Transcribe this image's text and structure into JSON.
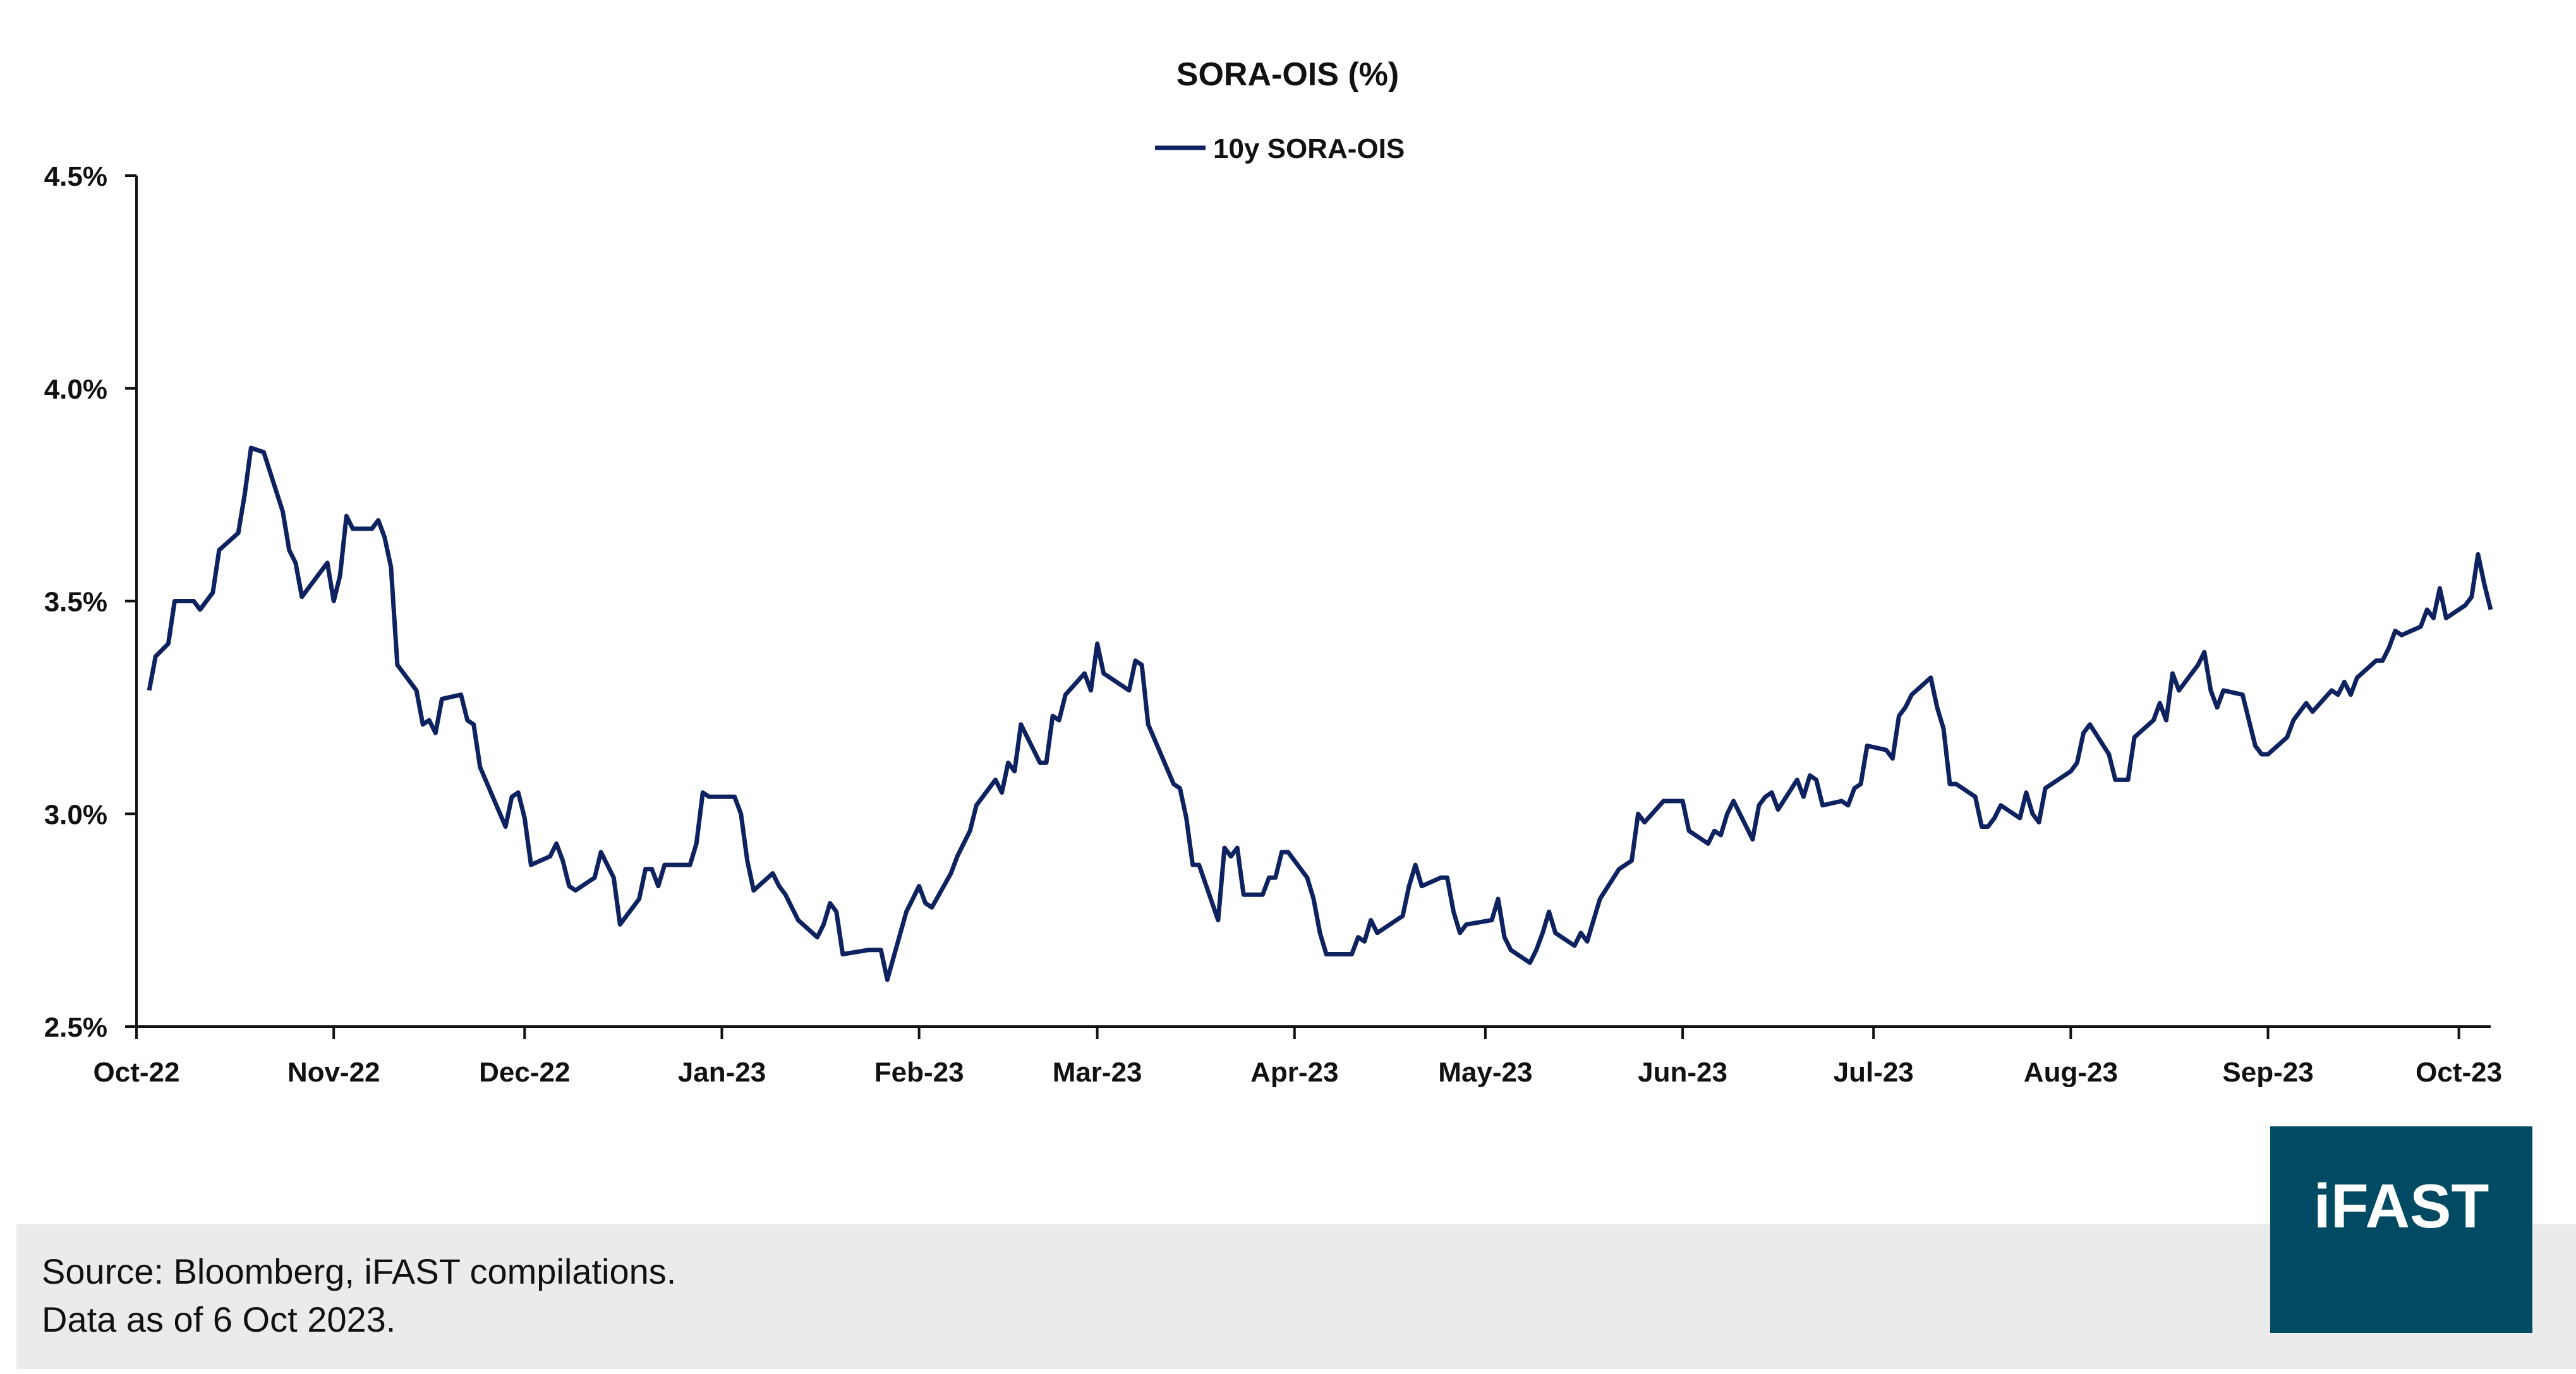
{
  "chart_data": {
    "type": "line",
    "title": "SORA-OIS (%)",
    "xlabel": "",
    "ylabel": "",
    "ylim": [
      2.5,
      4.5
    ],
    "y_ticks": [
      "2.5%",
      "3.0%",
      "3.5%",
      "4.0%",
      "4.5%"
    ],
    "y_tick_values": [
      2.5,
      3.0,
      3.5,
      4.0,
      4.5
    ],
    "x_ticks": [
      {
        "label": "Oct-22",
        "date": "2022-10-01"
      },
      {
        "label": "Nov-22",
        "date": "2022-11-01"
      },
      {
        "label": "Dec-22",
        "date": "2022-12-01"
      },
      {
        "label": "Jan-23",
        "date": "2023-01-01"
      },
      {
        "label": "Feb-23",
        "date": "2023-02-01"
      },
      {
        "label": "Mar-23",
        "date": "2023-03-01"
      },
      {
        "label": "Apr-23",
        "date": "2023-04-01"
      },
      {
        "label": "May-23",
        "date": "2023-05-01"
      },
      {
        "label": "Jun-23",
        "date": "2023-06-01"
      },
      {
        "label": "Jul-23",
        "date": "2023-07-01"
      },
      {
        "label": "Aug-23",
        "date": "2023-08-01"
      },
      {
        "label": "Sep-23",
        "date": "2023-09-01"
      },
      {
        "label": "Oct-23",
        "date": "2023-10-01"
      }
    ],
    "xlim": [
      "2022-10-01",
      "2023-10-06"
    ],
    "grid": false,
    "legend_position": "top-center",
    "series": [
      {
        "name": "10y SORA-OIS",
        "color": "#0f2260",
        "points": [
          [
            "2022-10-03",
            3.29
          ],
          [
            "2022-10-04",
            3.37
          ],
          [
            "2022-10-06",
            3.4
          ],
          [
            "2022-10-07",
            3.5
          ],
          [
            "2022-10-10",
            3.5
          ],
          [
            "2022-10-11",
            3.48
          ],
          [
            "2022-10-13",
            3.52
          ],
          [
            "2022-10-14",
            3.62
          ],
          [
            "2022-10-17",
            3.66
          ],
          [
            "2022-10-18",
            3.75
          ],
          [
            "2022-10-19",
            3.86
          ],
          [
            "2022-10-21",
            3.85
          ],
          [
            "2022-10-24",
            3.71
          ],
          [
            "2022-10-25",
            3.62
          ],
          [
            "2022-10-26",
            3.59
          ],
          [
            "2022-10-27",
            3.51
          ],
          [
            "2022-10-31",
            3.59
          ],
          [
            "2022-11-01",
            3.5
          ],
          [
            "2022-11-02",
            3.56
          ],
          [
            "2022-11-03",
            3.7
          ],
          [
            "2022-11-04",
            3.67
          ],
          [
            "2022-11-07",
            3.67
          ],
          [
            "2022-11-08",
            3.69
          ],
          [
            "2022-11-09",
            3.65
          ],
          [
            "2022-11-10",
            3.58
          ],
          [
            "2022-11-11",
            3.35
          ],
          [
            "2022-11-14",
            3.29
          ],
          [
            "2022-11-15",
            3.21
          ],
          [
            "2022-11-16",
            3.22
          ],
          [
            "2022-11-17",
            3.19
          ],
          [
            "2022-11-18",
            3.27
          ],
          [
            "2022-11-21",
            3.28
          ],
          [
            "2022-11-22",
            3.22
          ],
          [
            "2022-11-23",
            3.21
          ],
          [
            "2022-11-24",
            3.11
          ],
          [
            "2022-11-28",
            2.97
          ],
          [
            "2022-11-29",
            3.04
          ],
          [
            "2022-11-30",
            3.05
          ],
          [
            "2022-12-01",
            2.99
          ],
          [
            "2022-12-02",
            2.88
          ],
          [
            "2022-12-05",
            2.9
          ],
          [
            "2022-12-06",
            2.93
          ],
          [
            "2022-12-07",
            2.89
          ],
          [
            "2022-12-08",
            2.83
          ],
          [
            "2022-12-09",
            2.82
          ],
          [
            "2022-12-12",
            2.85
          ],
          [
            "2022-12-13",
            2.91
          ],
          [
            "2022-12-14",
            2.88
          ],
          [
            "2022-12-15",
            2.85
          ],
          [
            "2022-12-16",
            2.74
          ],
          [
            "2022-12-19",
            2.8
          ],
          [
            "2022-12-20",
            2.87
          ],
          [
            "2022-12-21",
            2.87
          ],
          [
            "2022-12-22",
            2.83
          ],
          [
            "2022-12-23",
            2.88
          ],
          [
            "2022-12-27",
            2.88
          ],
          [
            "2022-12-28",
            2.93
          ],
          [
            "2022-12-29",
            3.05
          ],
          [
            "2022-12-30",
            3.04
          ],
          [
            "2023-01-03",
            3.04
          ],
          [
            "2023-01-04",
            3.0
          ],
          [
            "2023-01-05",
            2.89
          ],
          [
            "2023-01-06",
            2.82
          ],
          [
            "2023-01-09",
            2.86
          ],
          [
            "2023-01-10",
            2.83
          ],
          [
            "2023-01-11",
            2.81
          ],
          [
            "2023-01-12",
            2.78
          ],
          [
            "2023-01-13",
            2.75
          ],
          [
            "2023-01-16",
            2.71
          ],
          [
            "2023-01-17",
            2.74
          ],
          [
            "2023-01-18",
            2.79
          ],
          [
            "2023-01-19",
            2.77
          ],
          [
            "2023-01-20",
            2.67
          ],
          [
            "2023-01-24",
            2.68
          ],
          [
            "2023-01-25",
            2.68
          ],
          [
            "2023-01-26",
            2.68
          ],
          [
            "2023-01-27",
            2.61
          ],
          [
            "2023-01-30",
            2.77
          ],
          [
            "2023-01-31",
            2.8
          ],
          [
            "2023-02-01",
            2.83
          ],
          [
            "2023-02-02",
            2.79
          ],
          [
            "2023-02-03",
            2.78
          ],
          [
            "2023-02-06",
            2.86
          ],
          [
            "2023-02-07",
            2.9
          ],
          [
            "2023-02-08",
            2.93
          ],
          [
            "2023-02-09",
            2.96
          ],
          [
            "2023-02-10",
            3.02
          ],
          [
            "2023-02-13",
            3.08
          ],
          [
            "2023-02-14",
            3.05
          ],
          [
            "2023-02-15",
            3.12
          ],
          [
            "2023-02-16",
            3.1
          ],
          [
            "2023-02-17",
            3.21
          ],
          [
            "2023-02-20",
            3.12
          ],
          [
            "2023-02-21",
            3.12
          ],
          [
            "2023-02-22",
            3.23
          ],
          [
            "2023-02-23",
            3.22
          ],
          [
            "2023-02-24",
            3.28
          ],
          [
            "2023-02-27",
            3.33
          ],
          [
            "2023-02-28",
            3.29
          ],
          [
            "2023-03-01",
            3.4
          ],
          [
            "2023-03-02",
            3.33
          ],
          [
            "2023-03-03",
            3.32
          ],
          [
            "2023-03-06",
            3.29
          ],
          [
            "2023-03-07",
            3.36
          ],
          [
            "2023-03-08",
            3.35
          ],
          [
            "2023-03-09",
            3.21
          ],
          [
            "2023-03-13",
            3.07
          ],
          [
            "2023-03-14",
            3.06
          ],
          [
            "2023-03-15",
            2.99
          ],
          [
            "2023-03-16",
            2.88
          ],
          [
            "2023-03-17",
            2.88
          ],
          [
            "2023-03-20",
            2.75
          ],
          [
            "2023-03-21",
            2.92
          ],
          [
            "2023-03-22",
            2.9
          ],
          [
            "2023-03-23",
            2.92
          ],
          [
            "2023-03-24",
            2.81
          ],
          [
            "2023-03-27",
            2.81
          ],
          [
            "2023-03-28",
            2.85
          ],
          [
            "2023-03-29",
            2.85
          ],
          [
            "2023-03-30",
            2.91
          ],
          [
            "2023-03-31",
            2.91
          ],
          [
            "2023-04-03",
            2.85
          ],
          [
            "2023-04-04",
            2.8
          ],
          [
            "2023-04-05",
            2.72
          ],
          [
            "2023-04-06",
            2.67
          ],
          [
            "2023-04-10",
            2.67
          ],
          [
            "2023-04-11",
            2.71
          ],
          [
            "2023-04-12",
            2.7
          ],
          [
            "2023-04-13",
            2.75
          ],
          [
            "2023-04-14",
            2.72
          ],
          [
            "2023-04-17",
            2.75
          ],
          [
            "2023-04-18",
            2.76
          ],
          [
            "2023-04-19",
            2.83
          ],
          [
            "2023-04-20",
            2.88
          ],
          [
            "2023-04-21",
            2.83
          ],
          [
            "2023-04-24",
            2.85
          ],
          [
            "2023-04-25",
            2.85
          ],
          [
            "2023-04-26",
            2.77
          ],
          [
            "2023-04-27",
            2.72
          ],
          [
            "2023-04-28",
            2.74
          ],
          [
            "2023-05-02",
            2.75
          ],
          [
            "2023-05-03",
            2.8
          ],
          [
            "2023-05-04",
            2.71
          ],
          [
            "2023-05-05",
            2.68
          ],
          [
            "2023-05-08",
            2.65
          ],
          [
            "2023-05-09",
            2.68
          ],
          [
            "2023-05-10",
            2.72
          ],
          [
            "2023-05-11",
            2.77
          ],
          [
            "2023-05-12",
            2.72
          ],
          [
            "2023-05-15",
            2.69
          ],
          [
            "2023-05-16",
            2.72
          ],
          [
            "2023-05-17",
            2.7
          ],
          [
            "2023-05-18",
            2.75
          ],
          [
            "2023-05-19",
            2.8
          ],
          [
            "2023-05-22",
            2.87
          ],
          [
            "2023-05-23",
            2.88
          ],
          [
            "2023-05-24",
            2.89
          ],
          [
            "2023-05-25",
            3.0
          ],
          [
            "2023-05-26",
            2.98
          ],
          [
            "2023-05-29",
            3.03
          ],
          [
            "2023-05-31",
            3.03
          ],
          [
            "2023-06-01",
            3.03
          ],
          [
            "2023-06-02",
            2.96
          ],
          [
            "2023-06-05",
            2.93
          ],
          [
            "2023-06-06",
            2.96
          ],
          [
            "2023-06-07",
            2.95
          ],
          [
            "2023-06-08",
            3.0
          ],
          [
            "2023-06-09",
            3.03
          ],
          [
            "2023-06-12",
            2.94
          ],
          [
            "2023-06-13",
            3.02
          ],
          [
            "2023-06-14",
            3.04
          ],
          [
            "2023-06-15",
            3.05
          ],
          [
            "2023-06-16",
            3.01
          ],
          [
            "2023-06-19",
            3.08
          ],
          [
            "2023-06-20",
            3.04
          ],
          [
            "2023-06-21",
            3.09
          ],
          [
            "2023-06-22",
            3.08
          ],
          [
            "2023-06-23",
            3.02
          ],
          [
            "2023-06-26",
            3.03
          ],
          [
            "2023-06-27",
            3.02
          ],
          [
            "2023-06-28",
            3.06
          ],
          [
            "2023-06-29",
            3.07
          ],
          [
            "2023-06-30",
            3.16
          ],
          [
            "2023-07-03",
            3.15
          ],
          [
            "2023-07-04",
            3.13
          ],
          [
            "2023-07-05",
            3.23
          ],
          [
            "2023-07-06",
            3.25
          ],
          [
            "2023-07-07",
            3.28
          ],
          [
            "2023-07-10",
            3.32
          ],
          [
            "2023-07-11",
            3.25
          ],
          [
            "2023-07-12",
            3.2
          ],
          [
            "2023-07-13",
            3.07
          ],
          [
            "2023-07-14",
            3.07
          ],
          [
            "2023-07-17",
            3.04
          ],
          [
            "2023-07-18",
            2.97
          ],
          [
            "2023-07-19",
            2.97
          ],
          [
            "2023-07-20",
            2.99
          ],
          [
            "2023-07-21",
            3.02
          ],
          [
            "2023-07-24",
            2.99
          ],
          [
            "2023-07-25",
            3.05
          ],
          [
            "2023-07-26",
            3.0
          ],
          [
            "2023-07-27",
            2.98
          ],
          [
            "2023-07-28",
            3.06
          ],
          [
            "2023-07-31",
            3.09
          ],
          [
            "2023-08-01",
            3.1
          ],
          [
            "2023-08-02",
            3.12
          ],
          [
            "2023-08-03",
            3.19
          ],
          [
            "2023-08-04",
            3.21
          ],
          [
            "2023-08-07",
            3.14
          ],
          [
            "2023-08-08",
            3.08
          ],
          [
            "2023-08-10",
            3.08
          ],
          [
            "2023-08-11",
            3.18
          ],
          [
            "2023-08-14",
            3.22
          ],
          [
            "2023-08-15",
            3.26
          ],
          [
            "2023-08-16",
            3.22
          ],
          [
            "2023-08-17",
            3.33
          ],
          [
            "2023-08-18",
            3.29
          ],
          [
            "2023-08-21",
            3.35
          ],
          [
            "2023-08-22",
            3.38
          ],
          [
            "2023-08-23",
            3.29
          ],
          [
            "2023-08-24",
            3.25
          ],
          [
            "2023-08-25",
            3.29
          ],
          [
            "2023-08-28",
            3.28
          ],
          [
            "2023-08-29",
            3.22
          ],
          [
            "2023-08-30",
            3.16
          ],
          [
            "2023-08-31",
            3.14
          ],
          [
            "2023-09-01",
            3.14
          ],
          [
            "2023-09-04",
            3.18
          ],
          [
            "2023-09-05",
            3.22
          ],
          [
            "2023-09-06",
            3.24
          ],
          [
            "2023-09-07",
            3.26
          ],
          [
            "2023-09-08",
            3.24
          ],
          [
            "2023-09-11",
            3.29
          ],
          [
            "2023-09-12",
            3.28
          ],
          [
            "2023-09-13",
            3.31
          ],
          [
            "2023-09-14",
            3.28
          ],
          [
            "2023-09-15",
            3.32
          ],
          [
            "2023-09-18",
            3.36
          ],
          [
            "2023-09-19",
            3.36
          ],
          [
            "2023-09-20",
            3.39
          ],
          [
            "2023-09-21",
            3.43
          ],
          [
            "2023-09-22",
            3.42
          ],
          [
            "2023-09-25",
            3.44
          ],
          [
            "2023-09-26",
            3.48
          ],
          [
            "2023-09-27",
            3.46
          ],
          [
            "2023-09-28",
            3.53
          ],
          [
            "2023-09-29",
            3.46
          ],
          [
            "2023-10-02",
            3.49
          ],
          [
            "2023-10-03",
            3.51
          ],
          [
            "2023-10-04",
            3.61
          ],
          [
            "2023-10-05",
            3.54
          ],
          [
            "2023-10-06",
            3.48
          ]
        ]
      }
    ]
  },
  "footer": {
    "source": "Source: Bloomberg, iFAST compilations.",
    "data_as_of": "Data as of 6 Oct 2023."
  },
  "logo": {
    "text": "iFAST",
    "color": "#004b63"
  }
}
